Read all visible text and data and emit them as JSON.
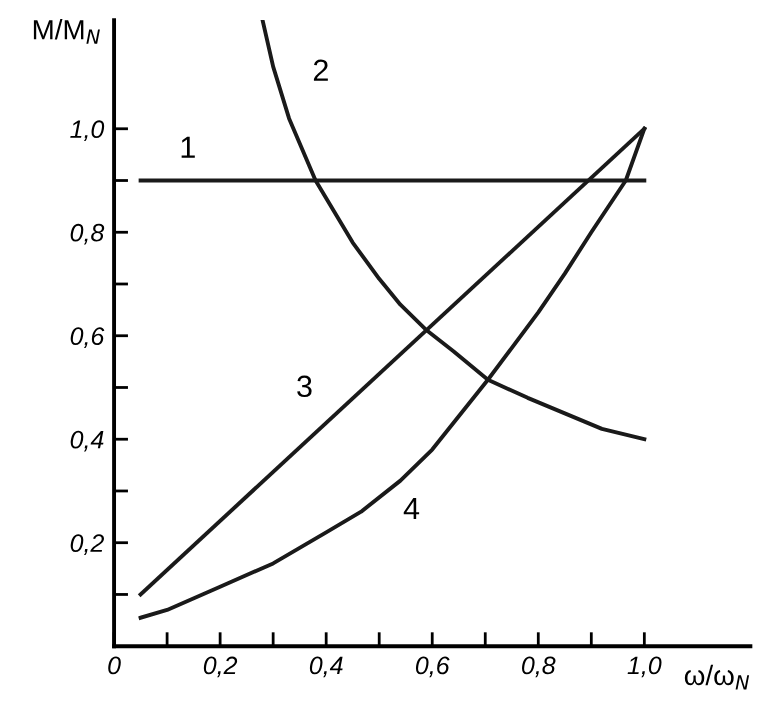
{
  "chart_data": {
    "type": "line",
    "xlabel": "ω/ω$_{N}$",
    "ylabel": "M/M$_{N}$",
    "xlim": [
      0,
      1.2
    ],
    "ylim": [
      0,
      1.21
    ],
    "xticks": [
      {
        "value": 0,
        "label": "0"
      },
      {
        "value": 0.1,
        "label": null
      },
      {
        "value": 0.2,
        "label": "0,2"
      },
      {
        "value": 0.3,
        "label": null
      },
      {
        "value": 0.4,
        "label": "0,4"
      },
      {
        "value": 0.5,
        "label": null
      },
      {
        "value": 0.6,
        "label": "0,6"
      },
      {
        "value": 0.7,
        "label": null
      },
      {
        "value": 0.8,
        "label": "0,8"
      },
      {
        "value": 0.9,
        "label": null
      },
      {
        "value": 1.0,
        "label": "1,0"
      }
    ],
    "yticks": [
      {
        "value": 0.1,
        "label": null
      },
      {
        "value": 0.2,
        "label": "0,2"
      },
      {
        "value": 0.3,
        "label": null
      },
      {
        "value": 0.4,
        "label": "0,4"
      },
      {
        "value": 0.5,
        "label": null
      },
      {
        "value": 0.6,
        "label": "0,6"
      },
      {
        "value": 0.7,
        "label": null
      },
      {
        "value": 0.8,
        "label": "0,8"
      },
      {
        "value": 0.9,
        "label": null
      },
      {
        "value": 1.0,
        "label": "1,0"
      }
    ],
    "grid": false,
    "legend": false,
    "marker": "none",
    "line_style": "solid",
    "series": [
      {
        "name": "1",
        "color": "#1a1a1a",
        "x": [
          0.05,
          1.0
        ],
        "values": [
          0.9,
          0.9
        ]
      },
      {
        "name": "2",
        "color": "#1a1a1a",
        "x": [
          0.28,
          0.3,
          0.33,
          0.38,
          0.45,
          0.5,
          0.54,
          0.59,
          0.64,
          0.705,
          0.78,
          0.85,
          0.92,
          1.0
        ],
        "values": [
          1.21,
          1.12,
          1.02,
          0.9,
          0.78,
          0.71,
          0.66,
          0.61,
          0.57,
          0.515,
          0.48,
          0.45,
          0.42,
          0.4
        ]
      },
      {
        "name": "3",
        "color": "#1a1a1a",
        "x": [
          0.05,
          1.0
        ],
        "values": [
          0.1,
          1.0
        ]
      },
      {
        "name": "4",
        "color": "#1a1a1a",
        "x": [
          0.05,
          0.1,
          0.2,
          0.3,
          0.4,
          0.466,
          0.54,
          0.6,
          0.705,
          0.8,
          0.85,
          0.9,
          0.965,
          1.0
        ],
        "values": [
          0.055,
          0.07,
          0.115,
          0.16,
          0.22,
          0.26,
          0.32,
          0.38,
          0.515,
          0.645,
          0.72,
          0.8,
          0.9,
          1.0
        ]
      }
    ]
  }
}
